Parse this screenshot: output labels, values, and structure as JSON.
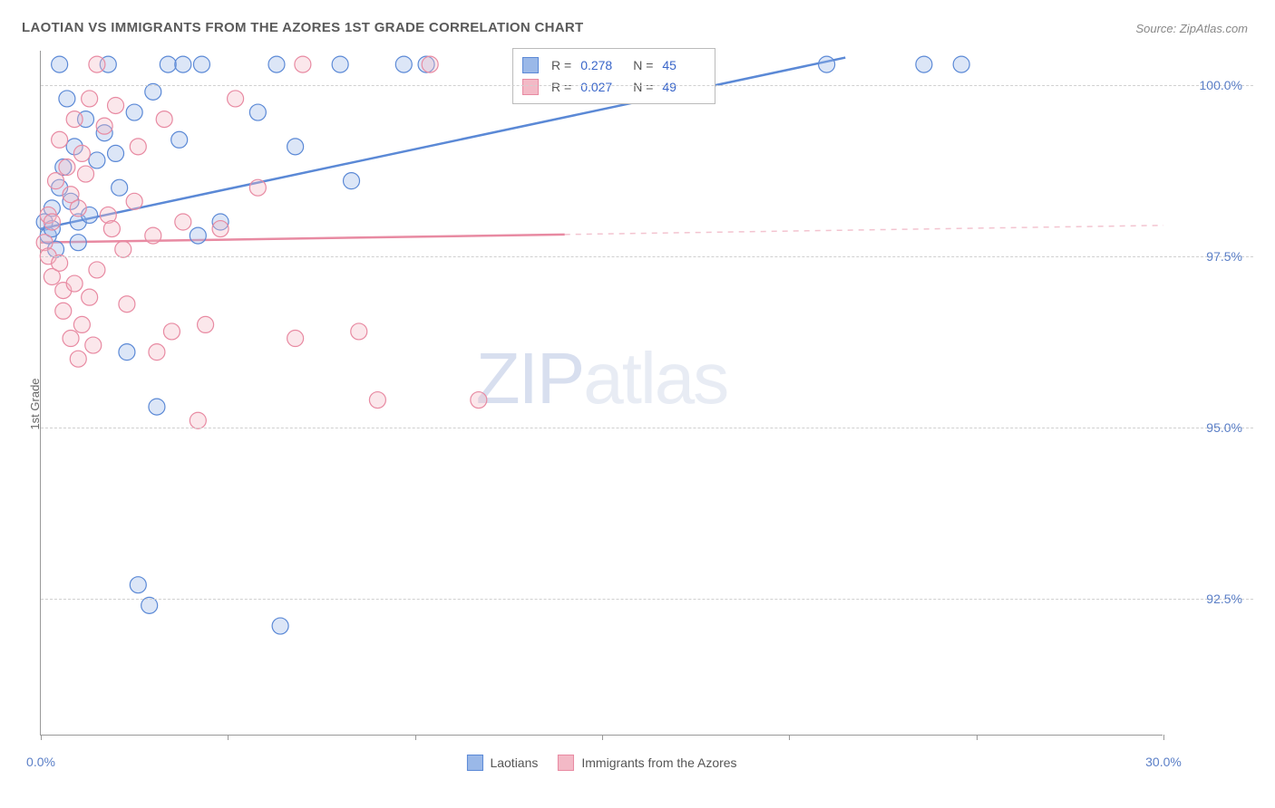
{
  "title": "LAOTIAN VS IMMIGRANTS FROM THE AZORES 1ST GRADE CORRELATION CHART",
  "source": "Source: ZipAtlas.com",
  "y_axis_label": "1st Grade",
  "watermark": {
    "zip": "ZIP",
    "atlas": "atlas"
  },
  "chart": {
    "type": "scatter",
    "background_color": "#ffffff",
    "grid_color": "#d0d0d0",
    "axis_color": "#999999",
    "xlim": [
      0,
      30
    ],
    "ylim": [
      90.5,
      100.5
    ],
    "x_ticks": [
      0,
      5,
      10,
      15,
      20,
      25,
      30
    ],
    "x_tick_labels": {
      "0": "0.0%",
      "30": "30.0%"
    },
    "y_ticks": [
      92.5,
      95.0,
      97.5,
      100.0
    ],
    "y_tick_labels": [
      "92.5%",
      "95.0%",
      "97.5%",
      "100.0%"
    ],
    "marker_radius": 9,
    "marker_fill_opacity": 0.35,
    "marker_stroke_width": 1.2,
    "line_stroke_width": 2.5,
    "series": [
      {
        "name": "Laotians",
        "color_fill": "#9ab8e8",
        "color_stroke": "#5b89d6",
        "R": "0.278",
        "N": "45",
        "trend": {
          "x1": 0,
          "y1": 97.9,
          "x2": 21.5,
          "y2": 100.4,
          "solid_until_x": 21.5
        },
        "points": [
          [
            0.1,
            98.0
          ],
          [
            0.2,
            97.8
          ],
          [
            0.3,
            98.2
          ],
          [
            0.3,
            97.9
          ],
          [
            0.4,
            97.6
          ],
          [
            0.5,
            98.5
          ],
          [
            0.5,
            100.3
          ],
          [
            0.6,
            98.8
          ],
          [
            0.7,
            99.8
          ],
          [
            0.8,
            98.3
          ],
          [
            0.9,
            99.1
          ],
          [
            1.0,
            98.0
          ],
          [
            1.0,
            97.7
          ],
          [
            1.2,
            99.5
          ],
          [
            1.3,
            98.1
          ],
          [
            1.5,
            98.9
          ],
          [
            1.7,
            99.3
          ],
          [
            1.8,
            100.3
          ],
          [
            2.0,
            99.0
          ],
          [
            2.1,
            98.5
          ],
          [
            2.3,
            96.1
          ],
          [
            2.5,
            99.6
          ],
          [
            2.6,
            92.7
          ],
          [
            2.9,
            92.4
          ],
          [
            3.0,
            99.9
          ],
          [
            3.1,
            95.3
          ],
          [
            3.4,
            100.3
          ],
          [
            3.7,
            99.2
          ],
          [
            3.8,
            100.3
          ],
          [
            4.2,
            97.8
          ],
          [
            4.3,
            100.3
          ],
          [
            4.8,
            98.0
          ],
          [
            5.8,
            99.6
          ],
          [
            6.3,
            100.3
          ],
          [
            6.4,
            92.1
          ],
          [
            6.8,
            99.1
          ],
          [
            8.0,
            100.3
          ],
          [
            8.3,
            98.6
          ],
          [
            9.7,
            100.3
          ],
          [
            10.3,
            100.3
          ],
          [
            14.5,
            100.3
          ],
          [
            16.5,
            100.3
          ],
          [
            21.0,
            100.3
          ],
          [
            23.6,
            100.3
          ],
          [
            24.6,
            100.3
          ]
        ]
      },
      {
        "name": "Immigrants from the Azores",
        "color_fill": "#f3b9c6",
        "color_stroke": "#e88aa2",
        "R": "0.027",
        "N": "49",
        "trend": {
          "x1": 0,
          "y1": 97.7,
          "x2": 30,
          "y2": 97.95,
          "solid_until_x": 14
        },
        "points": [
          [
            0.1,
            97.7
          ],
          [
            0.2,
            97.5
          ],
          [
            0.2,
            98.1
          ],
          [
            0.3,
            97.2
          ],
          [
            0.3,
            98.0
          ],
          [
            0.4,
            98.6
          ],
          [
            0.5,
            97.4
          ],
          [
            0.5,
            99.2
          ],
          [
            0.6,
            97.0
          ],
          [
            0.6,
            96.7
          ],
          [
            0.7,
            98.8
          ],
          [
            0.8,
            96.3
          ],
          [
            0.8,
            98.4
          ],
          [
            0.9,
            99.5
          ],
          [
            0.9,
            97.1
          ],
          [
            1.0,
            96.0
          ],
          [
            1.0,
            98.2
          ],
          [
            1.1,
            99.0
          ],
          [
            1.1,
            96.5
          ],
          [
            1.2,
            98.7
          ],
          [
            1.3,
            99.8
          ],
          [
            1.3,
            96.9
          ],
          [
            1.4,
            96.2
          ],
          [
            1.5,
            97.3
          ],
          [
            1.5,
            100.3
          ],
          [
            1.7,
            99.4
          ],
          [
            1.8,
            98.1
          ],
          [
            1.9,
            97.9
          ],
          [
            2.0,
            99.7
          ],
          [
            2.2,
            97.6
          ],
          [
            2.3,
            96.8
          ],
          [
            2.5,
            98.3
          ],
          [
            2.6,
            99.1
          ],
          [
            3.0,
            97.8
          ],
          [
            3.1,
            96.1
          ],
          [
            3.3,
            99.5
          ],
          [
            3.5,
            96.4
          ],
          [
            3.8,
            98.0
          ],
          [
            4.2,
            95.1
          ],
          [
            4.4,
            96.5
          ],
          [
            4.8,
            97.9
          ],
          [
            5.2,
            99.8
          ],
          [
            5.8,
            98.5
          ],
          [
            6.8,
            96.3
          ],
          [
            7.0,
            100.3
          ],
          [
            8.5,
            96.4
          ],
          [
            9.0,
            95.4
          ],
          [
            10.4,
            100.3
          ],
          [
            11.7,
            95.4
          ]
        ]
      }
    ]
  },
  "legend_top": {
    "r_label": "R =",
    "n_label": "N ="
  },
  "legend_bottom": [
    "Laotians",
    "Immigrants from the Azores"
  ]
}
